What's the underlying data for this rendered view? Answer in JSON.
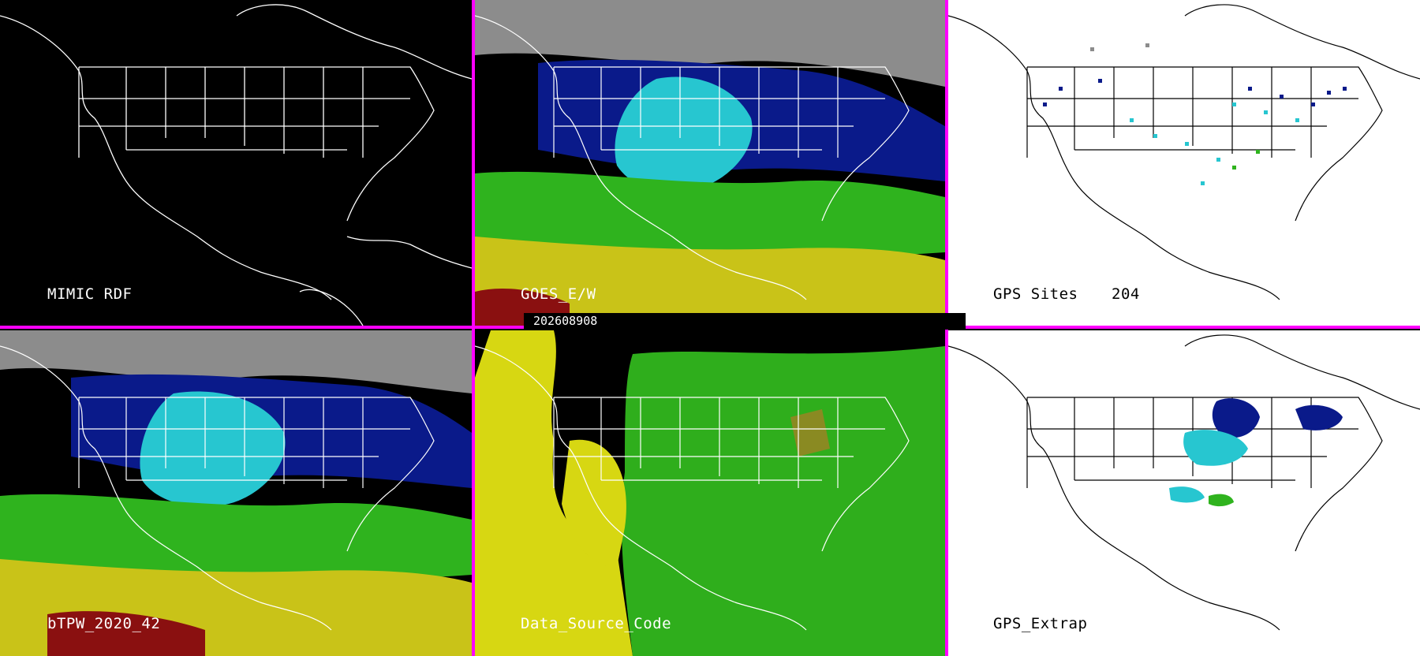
{
  "timestamp": "202608908",
  "colors": {
    "divider": "#ff00ff"
  },
  "panels": [
    {
      "id": "mimic-rdf",
      "label": "MIMIC RDF",
      "background": "#000000"
    },
    {
      "id": "goes-ew",
      "label": "GOES_E/W",
      "background": "#000000"
    },
    {
      "id": "gps-sites",
      "label": "GPS Sites",
      "count": "204",
      "background": "#ffffff"
    },
    {
      "id": "btpw",
      "label": "bTPW_2020_42",
      "background": "#000000"
    },
    {
      "id": "data-source",
      "label": "Data_Source_Code",
      "background": "#000000"
    },
    {
      "id": "gps-extrap",
      "label": "GPS_Extrap",
      "background": "#ffffff"
    }
  ]
}
